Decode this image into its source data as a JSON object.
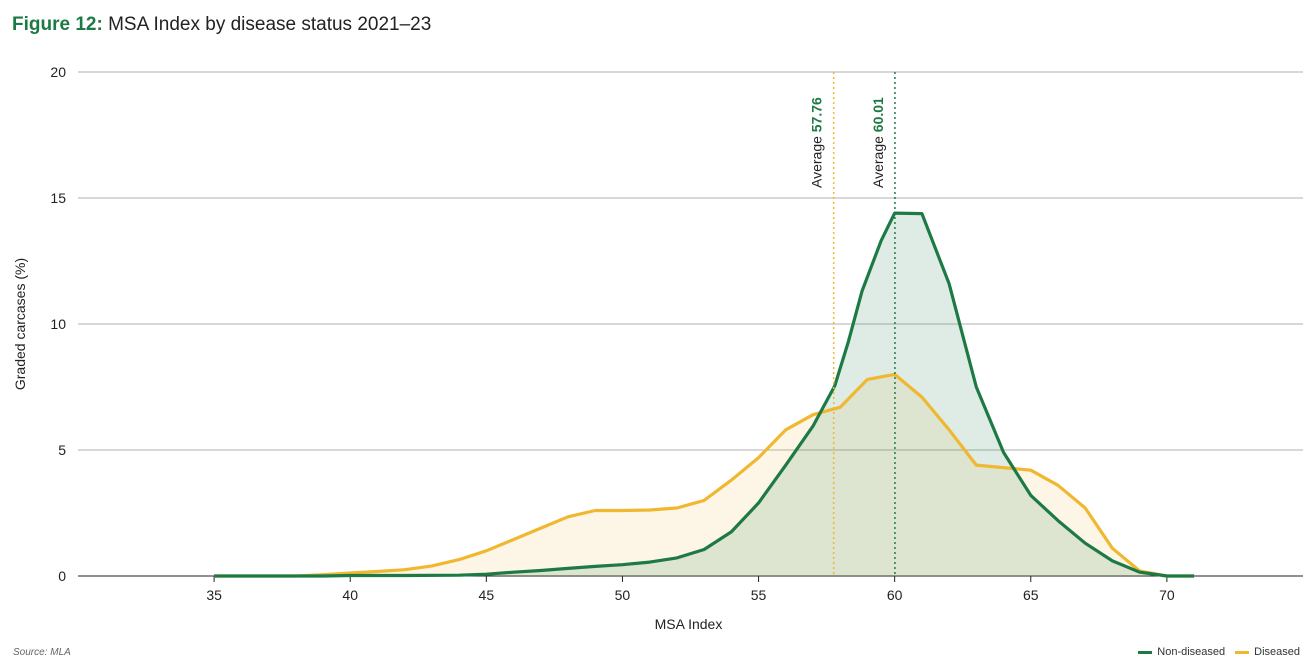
{
  "title": {
    "figure_label": "Figure 12:",
    "text": "MSA Index by disease status 2021–23"
  },
  "source": "Source: MLA",
  "colors": {
    "non_diseased": "#1e7a45",
    "diseased": "#f0b830",
    "non_diseased_fill": "rgba(30,122,69,0.14)",
    "diseased_fill": "rgba(240,184,48,0.12)",
    "grid": "#999999",
    "axis": "#222222"
  },
  "chart_data": {
    "type": "area",
    "xlabel": "MSA Index",
    "ylabel": "Graded carcases (%)",
    "xlim": [
      30,
      75
    ],
    "ylim": [
      0,
      20
    ],
    "xticks": [
      35,
      40,
      45,
      50,
      55,
      60,
      65,
      70
    ],
    "yticks": [
      0,
      5,
      10,
      15,
      20
    ],
    "grid": "horizontal",
    "legend_position": "bottom-right",
    "series": [
      {
        "name": "Non-diseased",
        "color": "#1e7a45",
        "points": [
          [
            35,
            0
          ],
          [
            39,
            0
          ],
          [
            40,
            0.02
          ],
          [
            42,
            0.02
          ],
          [
            44,
            0.03
          ],
          [
            45,
            0.07
          ],
          [
            46,
            0.15
          ],
          [
            47,
            0.22
          ],
          [
            48,
            0.3
          ],
          [
            49,
            0.38
          ],
          [
            50,
            0.45
          ],
          [
            51,
            0.55
          ],
          [
            52,
            0.72
          ],
          [
            53,
            1.05
          ],
          [
            54,
            1.75
          ],
          [
            55,
            2.9
          ],
          [
            56,
            4.4
          ],
          [
            57,
            5.95
          ],
          [
            57.8,
            7.55
          ],
          [
            58.3,
            9.3
          ],
          [
            58.8,
            11.3
          ],
          [
            59.5,
            13.3
          ],
          [
            60,
            14.4
          ],
          [
            61,
            14.38
          ],
          [
            62,
            11.6
          ],
          [
            63,
            7.5
          ],
          [
            64,
            4.9
          ],
          [
            65,
            3.2
          ],
          [
            66,
            2.2
          ],
          [
            67,
            1.3
          ],
          [
            68,
            0.6
          ],
          [
            69,
            0.15
          ],
          [
            70,
            0
          ],
          [
            71,
            0
          ]
        ]
      },
      {
        "name": "Diseased",
        "color": "#f0b830",
        "points": [
          [
            35,
            0
          ],
          [
            38,
            0
          ],
          [
            39,
            0.05
          ],
          [
            40,
            0.12
          ],
          [
            41,
            0.18
          ],
          [
            42,
            0.25
          ],
          [
            43,
            0.4
          ],
          [
            44,
            0.65
          ],
          [
            45,
            1.0
          ],
          [
            46,
            1.45
          ],
          [
            47,
            1.9
          ],
          [
            48,
            2.35
          ],
          [
            49,
            2.6
          ],
          [
            50,
            2.6
          ],
          [
            51,
            2.62
          ],
          [
            52,
            2.7
          ],
          [
            53,
            3.0
          ],
          [
            54,
            3.8
          ],
          [
            55,
            4.7
          ],
          [
            56,
            5.8
          ],
          [
            57,
            6.4
          ],
          [
            58,
            6.7
          ],
          [
            59,
            7.8
          ],
          [
            60,
            8.0
          ],
          [
            61,
            7.1
          ],
          [
            62,
            5.8
          ],
          [
            63,
            4.4
          ],
          [
            65,
            4.2
          ],
          [
            66,
            3.6
          ],
          [
            67,
            2.7
          ],
          [
            68,
            1.1
          ],
          [
            69,
            0.2
          ],
          [
            70,
            0
          ],
          [
            71,
            0
          ]
        ]
      }
    ],
    "annotations": [
      {
        "label": "Average",
        "value_text": "57.76",
        "x": 57.76,
        "color": "#f0b830",
        "value_color": "#1e7a45"
      },
      {
        "label": "Average",
        "value_text": "60.01",
        "x": 60.01,
        "color": "#1e7a45",
        "value_color": "#1e7a45"
      }
    ]
  }
}
